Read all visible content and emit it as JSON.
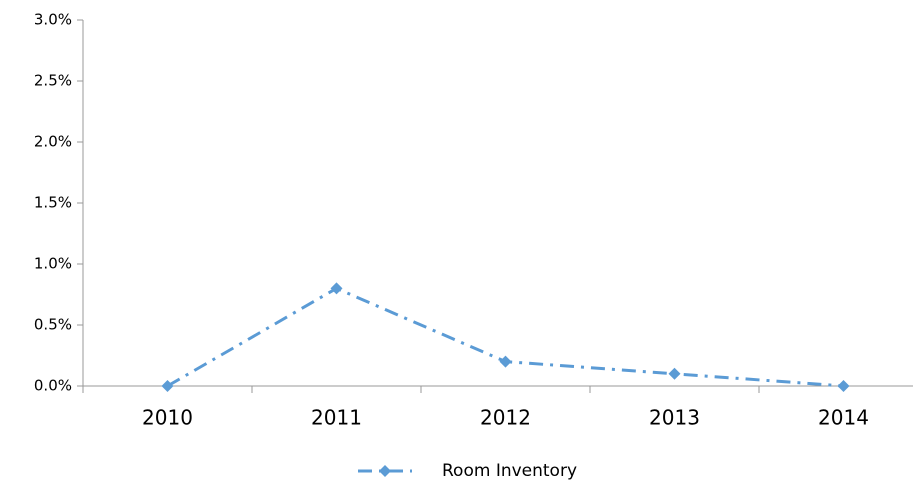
{
  "chart_data": {
    "type": "line",
    "categories": [
      "2010",
      "2011",
      "2012",
      "2013",
      "2014"
    ],
    "series": [
      {
        "name": "Room Inventory",
        "color": "#5b9bd5",
        "values": [
          0,
          0.8,
          0.2,
          0.1,
          0
        ]
      }
    ],
    "ylim": [
      0,
      3
    ],
    "yticks": [
      {
        "value": 0,
        "label": "0.0%"
      },
      {
        "value": 0.5,
        "label": "0.5%"
      },
      {
        "value": 1,
        "label": "1.0%"
      },
      {
        "value": 1.5,
        "label": "1.5%"
      },
      {
        "value": 2,
        "label": "2.0%"
      },
      {
        "value": 2.5,
        "label": "2.5%"
      },
      {
        "value": 3,
        "label": "3.0%"
      }
    ],
    "legend": "bottom"
  }
}
